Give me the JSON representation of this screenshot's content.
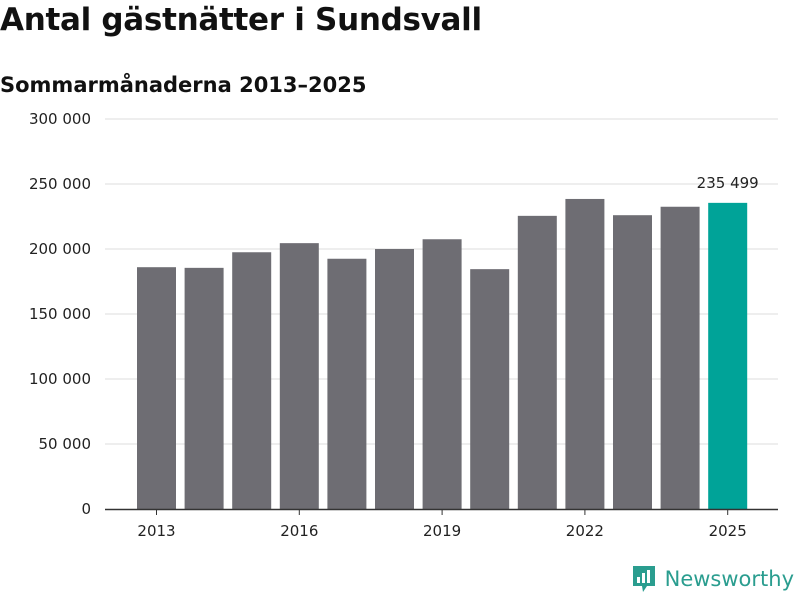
{
  "header": {
    "title": "Antal gästnätter i Sundsvall",
    "subtitle": "Sommarmånaderna 2013–2025"
  },
  "brand": {
    "name": "Newsworthy",
    "icon": "newsworthy-logo-icon",
    "color": "#2a9d8f"
  },
  "colors": {
    "bar": "#6e6d73",
    "highlight": "#00a398",
    "grid": "#dddddd",
    "axis": "#333333"
  },
  "chart_data": {
    "type": "bar",
    "categories": [
      "2013",
      "2014",
      "2015",
      "2016",
      "2017",
      "2018",
      "2019",
      "2020",
      "2021",
      "2022",
      "2023",
      "2024",
      "2025"
    ],
    "values": [
      186000,
      185500,
      197500,
      204500,
      192500,
      200000,
      207500,
      184500,
      225500,
      238500,
      226000,
      232500,
      235499
    ],
    "highlight_index": 12,
    "highlight_label": "235 499",
    "ylim": [
      0,
      300000
    ],
    "yticks": [
      0,
      50000,
      100000,
      150000,
      200000,
      250000,
      300000
    ],
    "ytick_labels": [
      "0",
      "50 000",
      "100 000",
      "150 000",
      "200 000",
      "250 000",
      "300 000"
    ],
    "xtick_labels": [
      "2013",
      "2016",
      "2019",
      "2022",
      "2025"
    ],
    "xtick_indices": [
      0,
      3,
      6,
      9,
      12
    ],
    "grid": true
  }
}
